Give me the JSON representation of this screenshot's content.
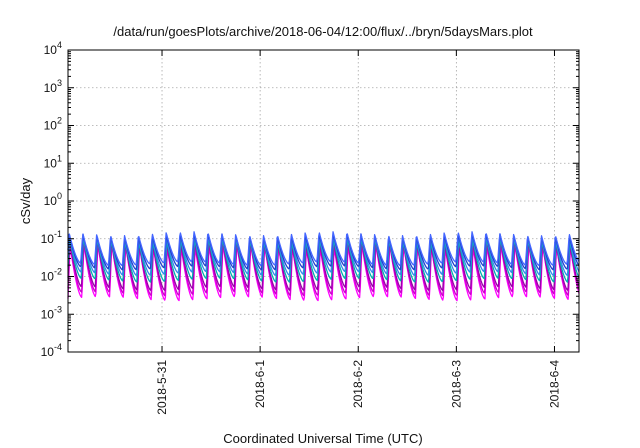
{
  "chart_data": {
    "type": "line",
    "title": "/data/run/goesPlots/archive/2018-06-04/12:00/flux/../bryn/5daysMars.plot",
    "xlabel": "Coordinated Universal Time (UTC)",
    "ylabel": "cSv/day",
    "yscale": "log",
    "ylim": [
      0.0001,
      10000
    ],
    "xlim": [
      "2018-05-30T01:00",
      "2018-06-04T06:00"
    ],
    "grid": true,
    "x_ticks": [
      {
        "date": "2018-05-31T00:00",
        "label": "2018-5-31"
      },
      {
        "date": "2018-06-01T00:00",
        "label": "2018-6-1"
      },
      {
        "date": "2018-06-02T00:00",
        "label": "2018-6-2"
      },
      {
        "date": "2018-06-03T00:00",
        "label": "2018-6-3"
      },
      {
        "date": "2018-06-04T00:00",
        "label": "2018-6-4"
      }
    ],
    "y_ticks": [
      {
        "value": 0.0001,
        "base": "10",
        "exp": "-4"
      },
      {
        "value": 0.001,
        "base": "10",
        "exp": "-3"
      },
      {
        "value": 0.01,
        "base": "10",
        "exp": "-2"
      },
      {
        "value": 0.1,
        "base": "10",
        "exp": "-1"
      },
      {
        "value": 1,
        "base": "10",
        "exp": "0"
      },
      {
        "value": 10,
        "base": "10",
        "exp": "1"
      },
      {
        "value": 100,
        "base": "10",
        "exp": "2"
      },
      {
        "value": 1000,
        "base": "10",
        "exp": "3"
      },
      {
        "value": 10000,
        "base": "10",
        "exp": "4"
      }
    ],
    "oscillation": {
      "period_hours": 3.4,
      "peak_range_cSv_per_day": [
        0.05,
        0.15
      ],
      "trough_range_cSv_per_day": [
        0.0025,
        0.03
      ]
    },
    "series": [
      {
        "color": "#ff00ff",
        "peak": 0.065,
        "trough": 0.0026,
        "phase_hours": 0.0
      },
      {
        "color": "#cc00cc",
        "peak": 0.072,
        "trough": 0.0035,
        "phase_hours": 0.05
      },
      {
        "color": "#9900aa",
        "peak": 0.085,
        "trough": 0.0048,
        "phase_hours": 0.1
      },
      {
        "color": "#00b0b0",
        "peak": 0.095,
        "trough": 0.008,
        "phase_hours": 0.15
      },
      {
        "color": "#3388ee",
        "peak": 0.11,
        "trough": 0.012,
        "phase_hours": 0.2
      },
      {
        "color": "#2040cc",
        "peak": 0.125,
        "trough": 0.017,
        "phase_hours": 0.25
      },
      {
        "color": "#4466ff",
        "peak": 0.14,
        "trough": 0.022,
        "phase_hours": 0.3
      }
    ]
  }
}
